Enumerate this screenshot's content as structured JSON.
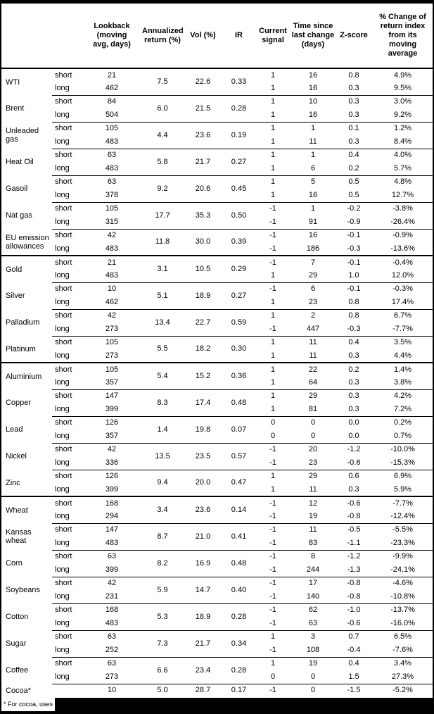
{
  "header": {
    "lookback": "Lookback\n(moving\navg, days)",
    "annualized": "Annualized\nreturn (%)",
    "vol": "Vol (%)",
    "ir": "IR",
    "signal": "Current\nsignal",
    "time": "Time since\nlast change\n(days)",
    "zscore": "Z-score",
    "change": "% Change of\nreturn index\nfrom its\nmoving\naverage"
  },
  "colors": {
    "border": "#000000",
    "background": "#ffffff",
    "redaction": "#000000"
  },
  "commodities": [
    {
      "name": "WTI",
      "section_start": true,
      "annualized": "7.5",
      "vol": "22.6",
      "ir": "0.33",
      "legs": [
        {
          "label": "short",
          "lookback": "21",
          "signal": "1",
          "time": "16",
          "zscore": "0.8",
          "change": "4.9%"
        },
        {
          "label": "long",
          "lookback": "462",
          "signal": "1",
          "time": "16",
          "zscore": "0.3",
          "change": "9.5%"
        }
      ]
    },
    {
      "name": "Brent",
      "section_start": false,
      "annualized": "6.0",
      "vol": "21.5",
      "ir": "0.28",
      "legs": [
        {
          "label": "short",
          "lookback": "84",
          "signal": "1",
          "time": "10",
          "zscore": "0.3",
          "change": "3.0%"
        },
        {
          "label": "long",
          "lookback": "504",
          "signal": "1",
          "time": "16",
          "zscore": "0.3",
          "change": "9.2%"
        }
      ]
    },
    {
      "name": "Unleaded gas",
      "section_start": false,
      "annualized": "4.4",
      "vol": "23.6",
      "ir": "0.19",
      "legs": [
        {
          "label": "short",
          "lookback": "105",
          "signal": "1",
          "time": "1",
          "zscore": "0.1",
          "change": "1.2%"
        },
        {
          "label": "long",
          "lookback": "483",
          "signal": "1",
          "time": "11",
          "zscore": "0.3",
          "change": "8.4%"
        }
      ]
    },
    {
      "name": "Heat Oil",
      "section_start": false,
      "annualized": "5.8",
      "vol": "21.7",
      "ir": "0.27",
      "legs": [
        {
          "label": "short",
          "lookback": "63",
          "signal": "1",
          "time": "1",
          "zscore": "0.4",
          "change": "4.0%"
        },
        {
          "label": "long",
          "lookback": "483",
          "signal": "1",
          "time": "6",
          "zscore": "0.2",
          "change": "5.7%"
        }
      ]
    },
    {
      "name": "Gasoil",
      "section_start": false,
      "annualized": "9.2",
      "vol": "20.6",
      "ir": "0.45",
      "legs": [
        {
          "label": "short",
          "lookback": "63",
          "signal": "1",
          "time": "5",
          "zscore": "0.5",
          "change": "4.8%"
        },
        {
          "label": "long",
          "lookback": "378",
          "signal": "1",
          "time": "16",
          "zscore": "0.5",
          "change": "12.7%"
        }
      ]
    },
    {
      "name": "Nat gas",
      "section_start": false,
      "annualized": "17.7",
      "vol": "35.3",
      "ir": "0.50",
      "legs": [
        {
          "label": "short",
          "lookback": "105",
          "signal": "-1",
          "time": "1",
          "zscore": "-0.2",
          "change": "-3.8%"
        },
        {
          "label": "long",
          "lookback": "315",
          "signal": "-1",
          "time": "91",
          "zscore": "-0.9",
          "change": "-26.4%"
        }
      ]
    },
    {
      "name": "EU emission allowances",
      "section_start": false,
      "annualized": "11.8",
      "vol": "30.0",
      "ir": "0.39",
      "legs": [
        {
          "label": "short",
          "lookback": "42",
          "signal": "-1",
          "time": "16",
          "zscore": "-0.1",
          "change": "-0.9%"
        },
        {
          "label": "long",
          "lookback": "483",
          "signal": "-1",
          "time": "186",
          "zscore": "-0.3",
          "change": "-13.6%"
        }
      ]
    },
    {
      "name": "Gold",
      "section_start": true,
      "annualized": "3.1",
      "vol": "10.5",
      "ir": "0.29",
      "legs": [
        {
          "label": "short",
          "lookback": "21",
          "signal": "-1",
          "time": "7",
          "zscore": "-0.1",
          "change": "-0.4%"
        },
        {
          "label": "long",
          "lookback": "483",
          "signal": "1",
          "time": "29",
          "zscore": "1.0",
          "change": "12.0%"
        }
      ]
    },
    {
      "name": "Silver",
      "section_start": false,
      "annualized": "5.1",
      "vol": "18.9",
      "ir": "0.27",
      "legs": [
        {
          "label": "short",
          "lookback": "10",
          "signal": "-1",
          "time": "6",
          "zscore": "-0.1",
          "change": "-0.3%"
        },
        {
          "label": "long",
          "lookback": "462",
          "signal": "1",
          "time": "23",
          "zscore": "0.8",
          "change": "17.4%"
        }
      ]
    },
    {
      "name": "Palladium",
      "section_start": false,
      "annualized": "13.4",
      "vol": "22.7",
      "ir": "0.59",
      "legs": [
        {
          "label": "short",
          "lookback": "42",
          "signal": "1",
          "time": "2",
          "zscore": "0.8",
          "change": "6.7%"
        },
        {
          "label": "long",
          "lookback": "273",
          "signal": "-1",
          "time": "447",
          "zscore": "-0.3",
          "change": "-7.7%"
        }
      ]
    },
    {
      "name": "Platinum",
      "section_start": false,
      "annualized": "5.5",
      "vol": "18.2",
      "ir": "0.30",
      "legs": [
        {
          "label": "short",
          "lookback": "105",
          "signal": "1",
          "time": "11",
          "zscore": "0.4",
          "change": "3.5%"
        },
        {
          "label": "long",
          "lookback": "273",
          "signal": "1",
          "time": "11",
          "zscore": "0.3",
          "change": "4.4%"
        }
      ]
    },
    {
      "name": "Aluminium",
      "section_start": true,
      "annualized": "5.4",
      "vol": "15.2",
      "ir": "0.36",
      "legs": [
        {
          "label": "short",
          "lookback": "105",
          "signal": "1",
          "time": "22",
          "zscore": "0.2",
          "change": "1.4%"
        },
        {
          "label": "long",
          "lookback": "357",
          "signal": "1",
          "time": "64",
          "zscore": "0.3",
          "change": "3.8%"
        }
      ]
    },
    {
      "name": "Copper",
      "section_start": false,
      "annualized": "8.3",
      "vol": "17.4",
      "ir": "0.48",
      "legs": [
        {
          "label": "short",
          "lookback": "147",
          "signal": "1",
          "time": "29",
          "zscore": "0.3",
          "change": "4.2%"
        },
        {
          "label": "long",
          "lookback": "399",
          "signal": "1",
          "time": "81",
          "zscore": "0.3",
          "change": "7.2%"
        }
      ]
    },
    {
      "name": "Lead",
      "section_start": false,
      "annualized": "1.4",
      "vol": "19.8",
      "ir": "0.07",
      "legs": [
        {
          "label": "short",
          "lookback": "126",
          "signal": "0",
          "time": "0",
          "zscore": "0.0",
          "change": "0.2%"
        },
        {
          "label": "long",
          "lookback": "357",
          "signal": "0",
          "time": "0",
          "zscore": "0.0",
          "change": "0.7%"
        }
      ]
    },
    {
      "name": "Nickel",
      "section_start": false,
      "annualized": "13.5",
      "vol": "23.5",
      "ir": "0.57",
      "legs": [
        {
          "label": "short",
          "lookback": "42",
          "signal": "-1",
          "time": "20",
          "zscore": "-1.2",
          "change": "-10.0%"
        },
        {
          "label": "long",
          "lookback": "336",
          "signal": "-1",
          "time": "23",
          "zscore": "-0.6",
          "change": "-15.3%"
        }
      ]
    },
    {
      "name": "Zinc",
      "section_start": false,
      "annualized": "9.4",
      "vol": "20.0",
      "ir": "0.47",
      "legs": [
        {
          "label": "short",
          "lookback": "126",
          "signal": "1",
          "time": "29",
          "zscore": "0.6",
          "change": "6.9%"
        },
        {
          "label": "long",
          "lookback": "399",
          "signal": "1",
          "time": "11",
          "zscore": "0.3",
          "change": "5.9%"
        }
      ]
    },
    {
      "name": "Wheat",
      "section_start": true,
      "annualized": "3.4",
      "vol": "23.6",
      "ir": "0.14",
      "legs": [
        {
          "label": "short",
          "lookback": "168",
          "signal": "-1",
          "time": "12",
          "zscore": "-0.6",
          "change": "-7.7%"
        },
        {
          "label": "long",
          "lookback": "294",
          "signal": "-1",
          "time": "19",
          "zscore": "-0.8",
          "change": "-12.4%"
        }
      ]
    },
    {
      "name": "Kansas wheat",
      "section_start": false,
      "annualized": "8.7",
      "vol": "21.0",
      "ir": "0.41",
      "legs": [
        {
          "label": "short",
          "lookback": "147",
          "signal": "-1",
          "time": "11",
          "zscore": "-0.5",
          "change": "-5.5%"
        },
        {
          "label": "long",
          "lookback": "483",
          "signal": "-1",
          "time": "83",
          "zscore": "-1.1",
          "change": "-23.3%"
        }
      ]
    },
    {
      "name": "Corn",
      "section_start": false,
      "annualized": "8.2",
      "vol": "16.9",
      "ir": "0.48",
      "legs": [
        {
          "label": "short",
          "lookback": "63",
          "signal": "-1",
          "time": "8",
          "zscore": "-1.2",
          "change": "-9.9%"
        },
        {
          "label": "long",
          "lookback": "399",
          "signal": "-1",
          "time": "244",
          "zscore": "-1.3",
          "change": "-24.1%"
        }
      ]
    },
    {
      "name": "Soybeans",
      "section_start": false,
      "annualized": "5.9",
      "vol": "14.7",
      "ir": "0.40",
      "legs": [
        {
          "label": "short",
          "lookback": "42",
          "signal": "-1",
          "time": "17",
          "zscore": "-0.8",
          "change": "-4.6%"
        },
        {
          "label": "long",
          "lookback": "231",
          "signal": "-1",
          "time": "140",
          "zscore": "-0.8",
          "change": "-10.8%"
        }
      ]
    },
    {
      "name": "Cotton",
      "section_start": false,
      "annualized": "5.3",
      "vol": "18.9",
      "ir": "0.28",
      "legs": [
        {
          "label": "short",
          "lookback": "168",
          "signal": "-1",
          "time": "62",
          "zscore": "-1.0",
          "change": "-13.7%"
        },
        {
          "label": "long",
          "lookback": "483",
          "signal": "-1",
          "time": "63",
          "zscore": "-0.6",
          "change": "-16.0%"
        }
      ]
    },
    {
      "name": "Sugar",
      "section_start": false,
      "annualized": "7.3",
      "vol": "21.7",
      "ir": "0.34",
      "legs": [
        {
          "label": "short",
          "lookback": "63",
          "signal": "1",
          "time": "3",
          "zscore": "0.7",
          "change": "6.5%"
        },
        {
          "label": "long",
          "lookback": "252",
          "signal": "-1",
          "time": "108",
          "zscore": "-0.4",
          "change": "-7.6%"
        }
      ]
    },
    {
      "name": "Coffee",
      "section_start": false,
      "annualized": "6.6",
      "vol": "23.4",
      "ir": "0.28",
      "legs": [
        {
          "label": "short",
          "lookback": "63",
          "signal": "1",
          "time": "19",
          "zscore": "0.4",
          "change": "3.4%"
        },
        {
          "label": "long",
          "lookback": "273",
          "signal": "0",
          "time": "0",
          "zscore": "1.5",
          "change": "27.3%"
        }
      ]
    },
    {
      "name": "Cocoa*",
      "section_start": false,
      "annualized": "5.0",
      "vol": "28.7",
      "ir": "0.17",
      "legs": [
        {
          "label": "",
          "lookback": "10",
          "signal": "-1",
          "time": "0",
          "zscore": "-1.5",
          "change": "-5.2%"
        }
      ]
    }
  ],
  "footnote": {
    "visible_text": "* For cocoa, uses c"
  }
}
